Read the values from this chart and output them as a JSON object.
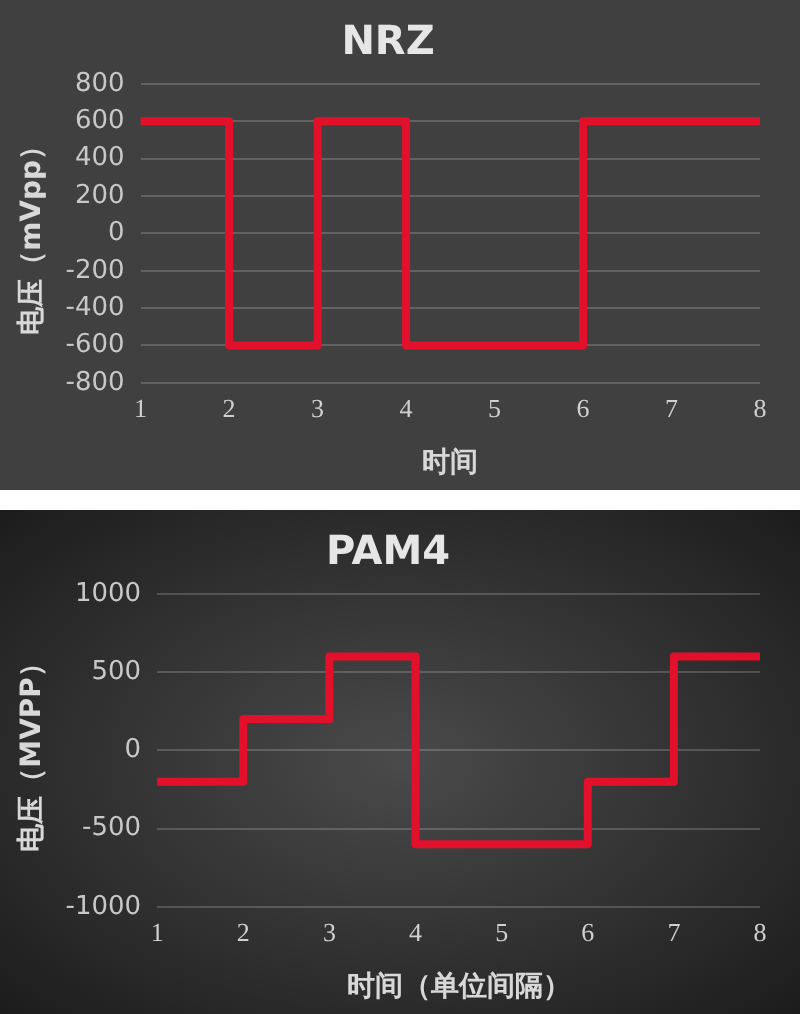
{
  "chart_data": [
    {
      "type": "step",
      "title": "NRZ",
      "xlabel": "时间",
      "ylabel": "电压（mVpp）",
      "categories": [
        "1",
        "2",
        "3",
        "4",
        "5",
        "6",
        "7",
        "8"
      ],
      "series": [
        {
          "color": "#e3102c",
          "values": [
            600,
            -600,
            600,
            -600,
            -600,
            600,
            600,
            600
          ]
        }
      ],
      "ylim": [
        -800,
        800
      ],
      "yticks": [
        -800,
        -600,
        -400,
        -200,
        0,
        200,
        400,
        600,
        800
      ],
      "grid": "y",
      "legend": false,
      "marker": "none",
      "line_style": "solid"
    },
    {
      "type": "step",
      "title": "PAM4",
      "xlabel": "时间（单位间隔）",
      "ylabel": "电压（MVPP）",
      "categories": [
        "1",
        "2",
        "3",
        "4",
        "5",
        "6",
        "7",
        "8"
      ],
      "series": [
        {
          "color": "#e3102c",
          "values": [
            -200,
            200,
            600,
            -600,
            -600,
            -200,
            600,
            600
          ]
        }
      ],
      "ylim": [
        -1000,
        1000
      ],
      "yticks": [
        -1000,
        -500,
        0,
        500,
        1000
      ],
      "grid": "y",
      "legend": false,
      "marker": "none",
      "line_style": "solid"
    }
  ]
}
